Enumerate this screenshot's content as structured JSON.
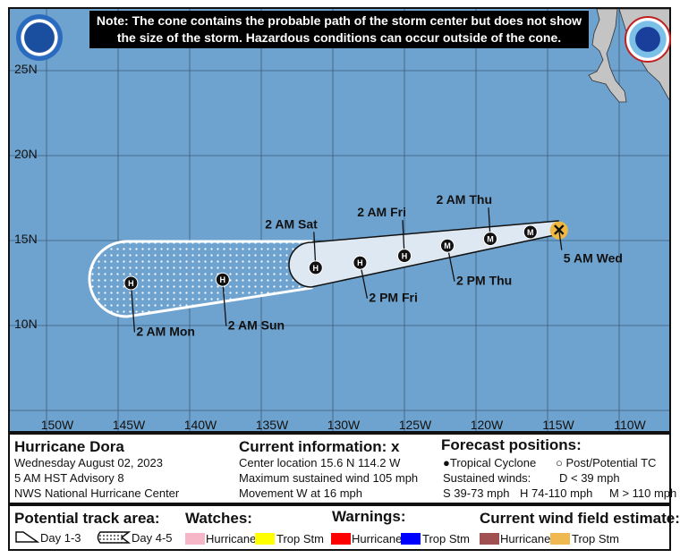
{
  "note": {
    "line1": "Note: The cone contains the probable path of the storm center but does not show",
    "line2": "the size of the storm. Hazardous conditions can occur outside of the cone."
  },
  "logos": {
    "left": "NOAA",
    "right": "NATIONAL WEATHER SERVICE"
  },
  "map": {
    "lat_labels": [
      "25N",
      "20N",
      "15N",
      "10N"
    ],
    "lon_labels": [
      "150W",
      "145W",
      "140W",
      "135W",
      "130W",
      "125W",
      "120W",
      "115W",
      "110W"
    ],
    "current_position": {
      "lat": 15.6,
      "lon": -114.2,
      "label": "5 AM Wed"
    },
    "forecast_points": [
      {
        "label": "",
        "type": "M",
        "lat": 15.5,
        "lon": -116.2
      },
      {
        "label": "2 AM Thu",
        "type": "M",
        "lat": 15.1,
        "lon": -119.0
      },
      {
        "label": "2 PM Thu",
        "type": "M",
        "lat": 14.7,
        "lon": -122.0
      },
      {
        "label": "2 AM Fri",
        "type": "H",
        "lat": 14.1,
        "lon": -125.0
      },
      {
        "label": "2 PM Fri",
        "type": "H",
        "lat": 13.7,
        "lon": -128.1
      },
      {
        "label": "2 AM Sat",
        "type": "H",
        "lat": 13.4,
        "lon": -131.2
      },
      {
        "label": "2 AM Sun",
        "type": "H",
        "lat": 12.7,
        "lon": -137.7
      },
      {
        "label": "2 AM Mon",
        "type": "H",
        "lat": 12.5,
        "lon": -144.1
      }
    ],
    "colors": {
      "ocean": "#6fa3cf",
      "land": "#c4c4c4",
      "cone": "#dde8f2",
      "current_wind_trop_stm": "#f0b840"
    }
  },
  "info": {
    "storm_name": "Hurricane Dora",
    "date": "Wednesday August 02, 2023",
    "advisory": "5 AM HST Advisory 8",
    "center": "NWS National Hurricane Center",
    "current_title": "Current information:",
    "current_marker": "x",
    "location": "Center location 15.6 N 114.2 W",
    "max_wind": "Maximum sustained wind 105 mph",
    "movement": "Movement W at 16 mph",
    "forecast_title": "Forecast positions:",
    "tc": "Tropical Cyclone",
    "ptc": "Post/Potential TC",
    "sustained": "Sustained winds:",
    "d": "D < 39 mph",
    "s": "S 39-73 mph",
    "hh": "H 74-110 mph",
    "m": "M > 110 mph"
  },
  "legend": {
    "track_title": "Potential track area:",
    "day13": "Day 1-3",
    "day45": "Day 4-5",
    "watches_title": "Watches:",
    "warnings_title": "Warnings:",
    "wind_title": "Current wind field estimate:",
    "hurricane": "Hurricane",
    "tropstm": "Trop Stm",
    "colors": {
      "watch_hurricane": "#f7b6c8",
      "watch_trop": "#ffff00",
      "warn_hurricane": "#ff0000",
      "warn_trop": "#0000ff",
      "wind_hurricane": "#a05050",
      "wind_trop": "#f0b850"
    }
  }
}
